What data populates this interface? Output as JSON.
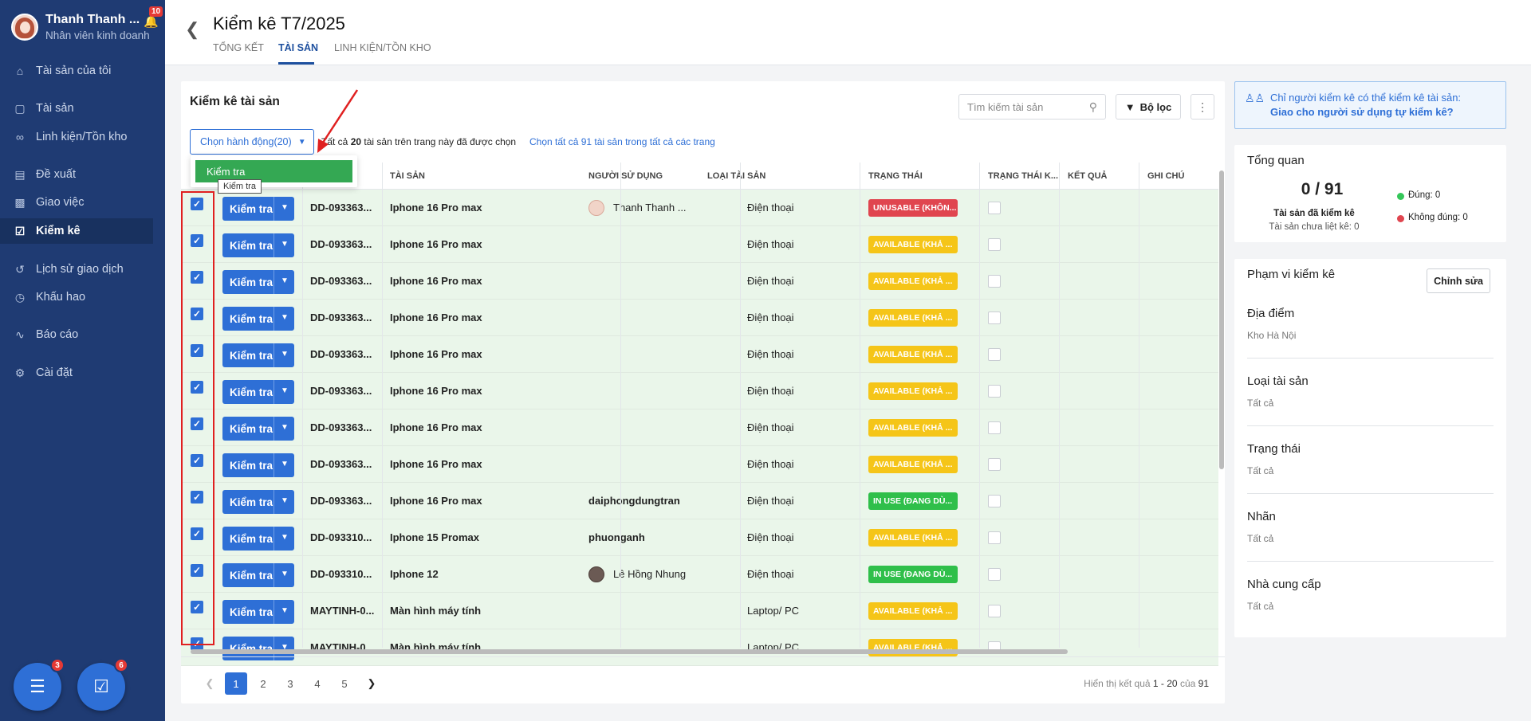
{
  "sidebar": {
    "user_name": "Thanh Thanh ...",
    "user_role": "Nhân viên kinh doanh",
    "bell_badge": "10",
    "items": [
      {
        "label": "Tài sản của tôi",
        "icon": "home-icon"
      },
      {
        "label": "Tài sản",
        "icon": "box-icon"
      },
      {
        "label": "Linh kiện/Tồn kho",
        "icon": "link-icon"
      },
      {
        "label": "Đề xuất",
        "icon": "document-icon"
      },
      {
        "label": "Giao việc",
        "icon": "clipboard-icon"
      },
      {
        "label": "Kiểm kê",
        "icon": "checklist-icon",
        "active": true
      },
      {
        "label": "Lịch sử giao dịch",
        "icon": "history-icon"
      },
      {
        "label": "Khấu hao",
        "icon": "clock-icon"
      },
      {
        "label": "Báo cáo",
        "icon": "chart-icon"
      },
      {
        "label": "Cài đặt",
        "icon": "gear-icon"
      }
    ],
    "chat_badge": "3",
    "task_badge": "6"
  },
  "header": {
    "title": "Kiểm kê T7/2025",
    "tabs": [
      "TỔNG KẾT",
      "TÀI SẢN",
      "LINH KIỆN/TỒN KHO"
    ],
    "active_tab": "TÀI SẢN"
  },
  "main": {
    "title": "Kiểm kê tài sản",
    "search_placeholder": "Tìm kiếm tài sản",
    "filter_label": "Bộ lọc",
    "action_dropdown": "Chọn hành động(20)",
    "selection_info_prefix": "Tất cả",
    "selection_count": "20",
    "selection_info_suffix": "tài sản trên trang này đã được chọn",
    "select_all_link": "Chọn tất cả 91 tài sản trong tất cả các trang",
    "dropdown_item": "Kiểm tra",
    "tooltip": "Kiểm tra",
    "columns": [
      "TÀI SẢN",
      "NGƯỜI SỬ DỤNG",
      "LOẠI TÀI SẢN",
      "TRẠNG THÁI",
      "TRẠNG THÁI K...",
      "KẾT QUẢ",
      "GHI CHÚ"
    ],
    "action_button_label": "Kiểm tra",
    "rows": [
      {
        "code": "DD-093363...",
        "asset": "Iphone 16 Pro max",
        "user": "Thanh Thanh ...",
        "avatar": "light",
        "type": "Điện thoại",
        "status": "UNUSABLE (KHÔN...",
        "status_kind": "unusable"
      },
      {
        "code": "DD-093363...",
        "asset": "Iphone 16 Pro max",
        "user": "",
        "avatar": "",
        "type": "Điện thoại",
        "status": "AVAILABLE (KHẢ ...",
        "status_kind": "available"
      },
      {
        "code": "DD-093363...",
        "asset": "Iphone 16 Pro max",
        "user": "",
        "avatar": "",
        "type": "Điện thoại",
        "status": "AVAILABLE (KHẢ ...",
        "status_kind": "available"
      },
      {
        "code": "DD-093363...",
        "asset": "Iphone 16 Pro max",
        "user": "",
        "avatar": "",
        "type": "Điện thoại",
        "status": "AVAILABLE (KHẢ ...",
        "status_kind": "available"
      },
      {
        "code": "DD-093363...",
        "asset": "Iphone 16 Pro max",
        "user": "",
        "avatar": "",
        "type": "Điện thoại",
        "status": "AVAILABLE (KHẢ ...",
        "status_kind": "available"
      },
      {
        "code": "DD-093363...",
        "asset": "Iphone 16 Pro max",
        "user": "",
        "avatar": "",
        "type": "Điện thoại",
        "status": "AVAILABLE (KHẢ ...",
        "status_kind": "available"
      },
      {
        "code": "DD-093363...",
        "asset": "Iphone 16 Pro max",
        "user": "",
        "avatar": "",
        "type": "Điện thoại",
        "status": "AVAILABLE (KHẢ ...",
        "status_kind": "available"
      },
      {
        "code": "DD-093363...",
        "asset": "Iphone 16 Pro max",
        "user": "",
        "avatar": "",
        "type": "Điện thoại",
        "status": "AVAILABLE (KHẢ ...",
        "status_kind": "available"
      },
      {
        "code": "DD-093363...",
        "asset": "Iphone 16 Pro max",
        "user": "daiphongdungtran",
        "avatar": "",
        "type": "Điện thoại",
        "status": "IN USE (ĐANG DÙ...",
        "status_kind": "inuse"
      },
      {
        "code": "DD-093310...",
        "asset": "Iphone 15 Promax",
        "user": "phuonganh",
        "avatar": "",
        "type": "Điện thoại",
        "status": "AVAILABLE (KHẢ ...",
        "status_kind": "available"
      },
      {
        "code": "DD-093310...",
        "asset": "Iphone 12",
        "user": "Lê Hồng Nhung",
        "avatar": "dark",
        "type": "Điện thoại",
        "status": "IN USE (ĐANG DÙ...",
        "status_kind": "inuse"
      },
      {
        "code": "MAYTINH-0...",
        "asset": "Màn hình máy tính",
        "user": "",
        "avatar": "",
        "type": "Laptop/ PC",
        "status": "AVAILABLE (KHẢ ...",
        "status_kind": "available"
      },
      {
        "code": "MAYTINH-0...",
        "asset": "Màn hình máy tính",
        "user": "",
        "avatar": "",
        "type": "Laptop/ PC",
        "status": "AVAILABLE (KHẢ ...",
        "status_kind": "available"
      }
    ],
    "pages": [
      "1",
      "2",
      "3",
      "4",
      "5"
    ],
    "active_page": "1",
    "result_prefix": "Hiển thị kết quả",
    "result_range": "1 - 20",
    "result_mid": "của",
    "result_total": "91"
  },
  "right": {
    "notice_line1": "Chỉ người kiểm kê có thể kiểm kê tài sản:",
    "notice_line2": "Giao cho người sử dụng tự kiểm kê?",
    "overview_title": "Tổng quan",
    "overview_count": "0 / 91",
    "overview_checked": "Tài sản đã kiểm kê",
    "overview_unlisted": "Tài sản chưa liệt kê: 0",
    "legend_correct": "Đúng: 0",
    "legend_incorrect": "Không đúng: 0",
    "scope_title": "Phạm vi kiểm kê",
    "edit_label": "Chỉnh sửa",
    "scope_items": [
      {
        "label": "Địa điểm",
        "value": "Kho Hà Nội"
      },
      {
        "label": "Loại tài sản",
        "value": "Tất cả"
      },
      {
        "label": "Trạng thái",
        "value": "Tất cả"
      },
      {
        "label": "Nhãn",
        "value": "Tất cả"
      },
      {
        "label": "Nhà cung cấp",
        "value": "Tất cả"
      }
    ]
  },
  "colors": {
    "sidebar": "#1f3b73",
    "accent": "#2e6fd6",
    "row_selected": "#eaf6ea",
    "status_unusable": "#e0454f",
    "status_available": "#f5c518",
    "status_inuse": "#2fbf4a",
    "annotation": "#e02020"
  }
}
